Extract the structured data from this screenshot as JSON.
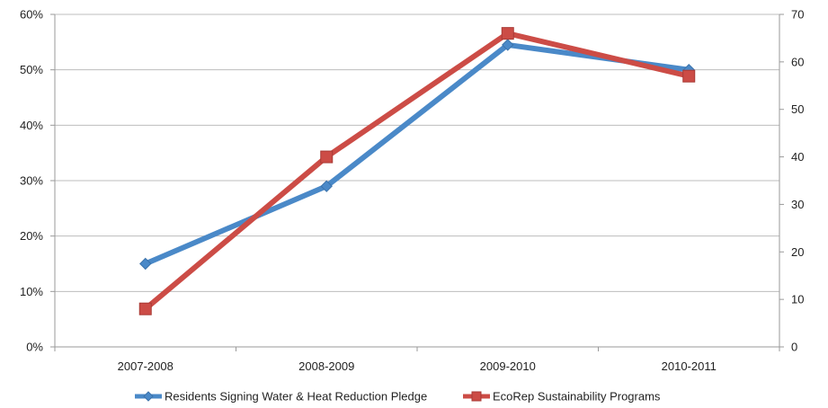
{
  "chart_data": {
    "type": "line",
    "title": "",
    "xlabel": "",
    "ylabel": "",
    "categories": [
      "2007-2008",
      "2008-2009",
      "2009-2010",
      "2010-2011"
    ],
    "y_left": {
      "lim": [
        0,
        60
      ],
      "ticks": [
        0,
        10,
        20,
        30,
        40,
        50,
        60
      ],
      "tick_labels": [
        "0%",
        "10%",
        "20%",
        "30%",
        "40%",
        "50%",
        "60%"
      ]
    },
    "y_right": {
      "lim": [
        0,
        70
      ],
      "ticks": [
        0,
        10,
        20,
        30,
        40,
        50,
        60,
        70
      ],
      "tick_labels": [
        "0",
        "10",
        "20",
        "30",
        "40",
        "50",
        "60",
        "70"
      ]
    },
    "grid": true,
    "legend_position": "bottom",
    "series": [
      {
        "name": "Residents Signing Water & Heat Reduction Pledge",
        "axis": "left",
        "color": "#4a89c8",
        "marker": "diamond",
        "values": [
          15,
          29,
          54.5,
          50
        ]
      },
      {
        "name": "EcoRep Sustainability Programs",
        "axis": "right",
        "color": "#cc4c46",
        "marker": "square",
        "values": [
          8,
          40,
          66,
          57
        ]
      }
    ]
  }
}
